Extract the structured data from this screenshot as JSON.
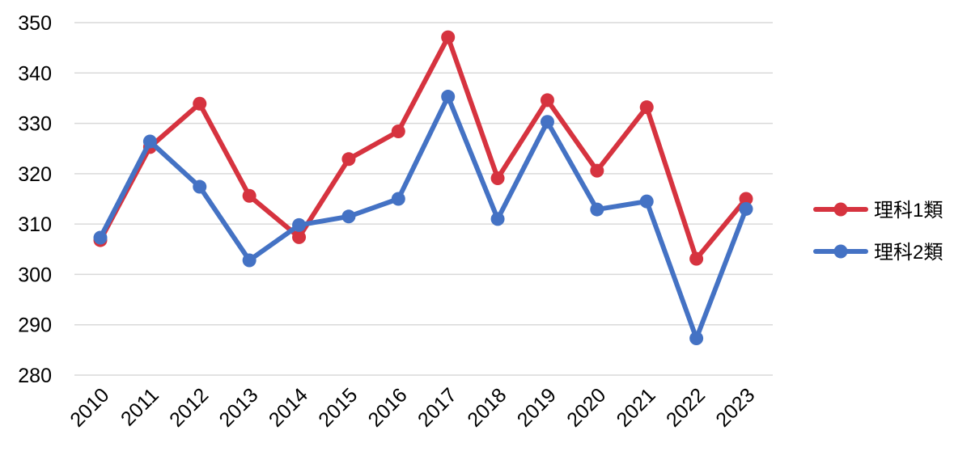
{
  "chart_data": {
    "type": "line",
    "title": "",
    "xlabel": "",
    "ylabel": "",
    "x": [
      "2010",
      "2011",
      "2012",
      "2013",
      "2014",
      "2015",
      "2016",
      "2017",
      "2018",
      "2019",
      "2020",
      "2021",
      "2022",
      "2023"
    ],
    "ylim": [
      280,
      350
    ],
    "yticks": [
      "280",
      "290",
      "300",
      "310",
      "320",
      "330",
      "340",
      "350"
    ],
    "grid": true,
    "legend_position": "right",
    "series": [
      {
        "name": "理科1類",
        "color": "#d6333f",
        "values": [
          306.8,
          325.3,
          333.9,
          315.6,
          307.4,
          322.9,
          328.4,
          347.1,
          319.1,
          334.6,
          320.6,
          333.2,
          303.1,
          315.0
        ]
      },
      {
        "name": "理科2類",
        "color": "#4472c4",
        "values": [
          307.3,
          326.4,
          317.4,
          302.8,
          309.8,
          311.5,
          315.0,
          335.3,
          311.0,
          330.3,
          312.9,
          314.5,
          287.3,
          313.0
        ]
      }
    ]
  }
}
